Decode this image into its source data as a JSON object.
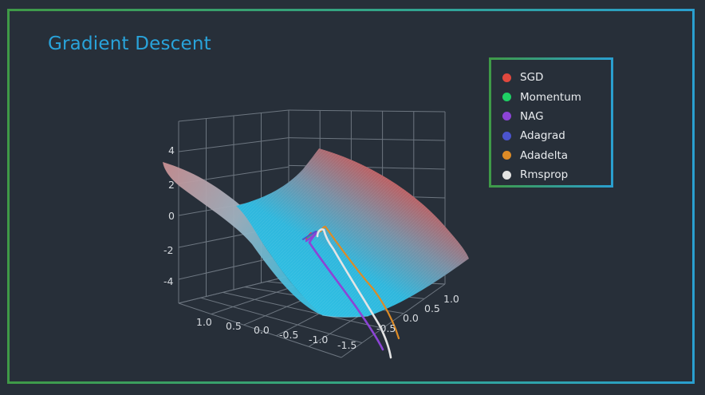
{
  "title": "Gradient Descent",
  "colors": {
    "background": "#272f39",
    "title": "#29a3da",
    "surface_low": "#28c2e6",
    "surface_high": "#d04a48",
    "axis_text": "#d7dbe0",
    "grid": "#6d7680"
  },
  "chart_data": {
    "type": "surface",
    "title": "Gradient Descent",
    "z_axis": {
      "ticks": [
        "4",
        "2",
        "0",
        "-2",
        "-4"
      ]
    },
    "x_axis": {
      "ticks": [
        "1.0",
        "0.5",
        "0.0",
        "-0.5",
        "-1.0",
        "-1.5"
      ]
    },
    "y_axis": {
      "ticks": [
        "1.0",
        "0.5",
        "0.0",
        "-0.5"
      ]
    },
    "surface": "saddle",
    "colorscale": [
      "#28c2e6",
      "#d04a48"
    ],
    "legend_placement": "top-right",
    "series": [
      {
        "name": "SGD",
        "color": "#e0483e"
      },
      {
        "name": "Momentum",
        "color": "#1ed064"
      },
      {
        "name": "NAG",
        "color": "#8c44d6"
      },
      {
        "name": "Adagrad",
        "color": "#4b54cf"
      },
      {
        "name": "Adadelta",
        "color": "#dd8b26"
      },
      {
        "name": "Rmsprop",
        "color": "#e4e4e4"
      }
    ]
  }
}
